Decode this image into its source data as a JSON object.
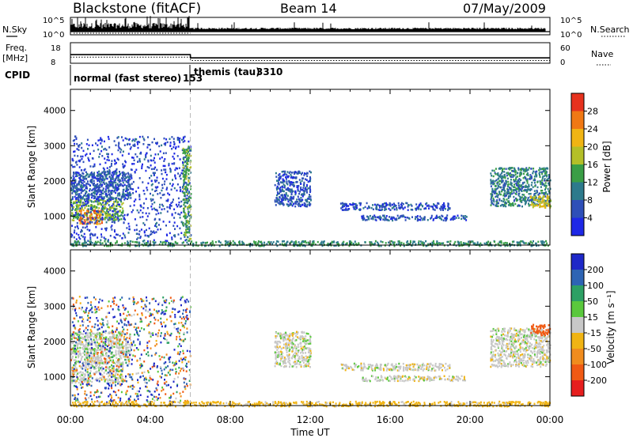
{
  "header": {
    "radar": "Blackstone (fitACF)",
    "beam": "Beam 14",
    "date": "07/May/2009"
  },
  "summary": {
    "nsky_label": "N.Sky",
    "nsky_ticks": [
      "10^5",
      "10^0"
    ],
    "nsearch_label": "N.Search",
    "nsearch_ticks": [
      "10^5",
      "10^0"
    ],
    "freq_label": "Freq.",
    "freq_unit": "[MHz]",
    "freq_ticks": [
      "18",
      "8"
    ],
    "nave_label": "Nave",
    "nave_ticks": [
      "60",
      "0"
    ],
    "cpid_label": "CPID",
    "modes": [
      {
        "name": "normal (fast stereo)",
        "id": "153",
        "start_hour": 0,
        "end_hour": 6
      },
      {
        "name": "themis (tau)",
        "id": "3310",
        "start_hour": 6,
        "end_hour": 24
      }
    ],
    "freq_mhz": [
      [
        0,
        12.2
      ],
      [
        6,
        12.2
      ],
      [
        6.01,
        10.6
      ],
      [
        24,
        10.6
      ]
    ],
    "nave": [
      [
        0,
        18
      ],
      [
        6,
        18
      ],
      [
        6.01,
        8
      ],
      [
        24,
        8
      ]
    ]
  },
  "chart_data": [
    {
      "type": "heatmap",
      "panel": "power",
      "xlabel": "",
      "ylabel": "Slant Range [km]",
      "xlim": [
        0,
        24
      ],
      "ylim": [
        180,
        4600
      ],
      "x_ticks": [
        "00:00",
        "04:00",
        "08:00",
        "12:00",
        "16:00",
        "20:00",
        "00:00"
      ],
      "y_ticks": [
        1000,
        2000,
        3000,
        4000
      ],
      "colorbar": {
        "label": "Power [dB]",
        "ticks": [
          4,
          8,
          12,
          16,
          20,
          24,
          28
        ],
        "range": [
          0,
          32
        ],
        "colors": [
          "#1e28e6",
          "#2e4fb8",
          "#2d7a8c",
          "#3a9e46",
          "#b4bf28",
          "#f0b414",
          "#f07814",
          "#e6321e"
        ]
      },
      "echo_regions": [
        {
          "t0": 0.0,
          "t1": 2.6,
          "r0": 900,
          "r1": 1500,
          "value": 16
        },
        {
          "t0": 0.4,
          "t1": 1.6,
          "r0": 800,
          "r1": 1200,
          "value": 26
        },
        {
          "t0": 0.0,
          "t1": 3.0,
          "r0": 1500,
          "r1": 2300,
          "value": 7
        },
        {
          "t0": 0.0,
          "t1": 6.0,
          "r0": 300,
          "r1": 3300,
          "value": 5
        },
        {
          "t0": 5.6,
          "t1": 6.0,
          "r0": 300,
          "r1": 3000,
          "value": 14
        },
        {
          "t0": 10.2,
          "t1": 12.0,
          "r0": 1300,
          "r1": 2300,
          "value": 6
        },
        {
          "t0": 13.5,
          "t1": 19.0,
          "r0": 1200,
          "r1": 1400,
          "value": 6
        },
        {
          "t0": 14.5,
          "t1": 19.8,
          "r0": 900,
          "r1": 1050,
          "value": 6
        },
        {
          "t0": 21.0,
          "t1": 24.0,
          "r0": 1300,
          "r1": 2400,
          "value": 10
        },
        {
          "t0": 23.0,
          "t1": 24.0,
          "r0": 1250,
          "r1": 1600,
          "value": 20
        },
        {
          "t0": 0.0,
          "t1": 24.0,
          "r0": 180,
          "r1": 320,
          "value": 12
        }
      ]
    },
    {
      "type": "heatmap",
      "panel": "velocity",
      "xlabel": "Time UT",
      "ylabel": "Slant Range [km]",
      "xlim": [
        0,
        24
      ],
      "ylim": [
        180,
        4600
      ],
      "x_ticks": [
        "00:00",
        "04:00",
        "08:00",
        "12:00",
        "16:00",
        "20:00",
        "00:00"
      ],
      "y_ticks": [
        1000,
        2000,
        3000,
        4000
      ],
      "colorbar": {
        "label": "Velocity [m s⁻¹]",
        "ticks": [
          "200",
          "100",
          "50",
          "15",
          "-15",
          "-50",
          "-100",
          "-200"
        ],
        "colors": [
          "#1e28c8",
          "#2e64b4",
          "#2da064",
          "#5ac83c",
          "#c8c8c8",
          "#f0b414",
          "#f08c1e",
          "#f05a14",
          "#e61e1e"
        ]
      },
      "echo_regions": [
        {
          "t0": 0.0,
          "t1": 2.6,
          "r0": 850,
          "r1": 1500,
          "value": 0
        },
        {
          "t0": 0.0,
          "t1": 3.0,
          "r0": 1500,
          "r1": 2300,
          "value": 5
        },
        {
          "t0": 0.0,
          "t1": 6.0,
          "r0": 300,
          "r1": 3300,
          "value": 80
        },
        {
          "t0": 10.2,
          "t1": 12.0,
          "r0": 1300,
          "r1": 2300,
          "value": 0
        },
        {
          "t0": 13.5,
          "t1": 19.0,
          "r0": 1200,
          "r1": 1400,
          "value": 0
        },
        {
          "t0": 14.5,
          "t1": 19.8,
          "r0": 900,
          "r1": 1050,
          "value": 0
        },
        {
          "t0": 21.0,
          "t1": 24.0,
          "r0": 1300,
          "r1": 2400,
          "value": 0
        },
        {
          "t0": 23.0,
          "t1": 24.0,
          "r0": 2200,
          "r1": 2500,
          "value": -150
        },
        {
          "t0": 0.0,
          "t1": 24.0,
          "r0": 180,
          "r1": 320,
          "value": -30
        }
      ]
    }
  ]
}
